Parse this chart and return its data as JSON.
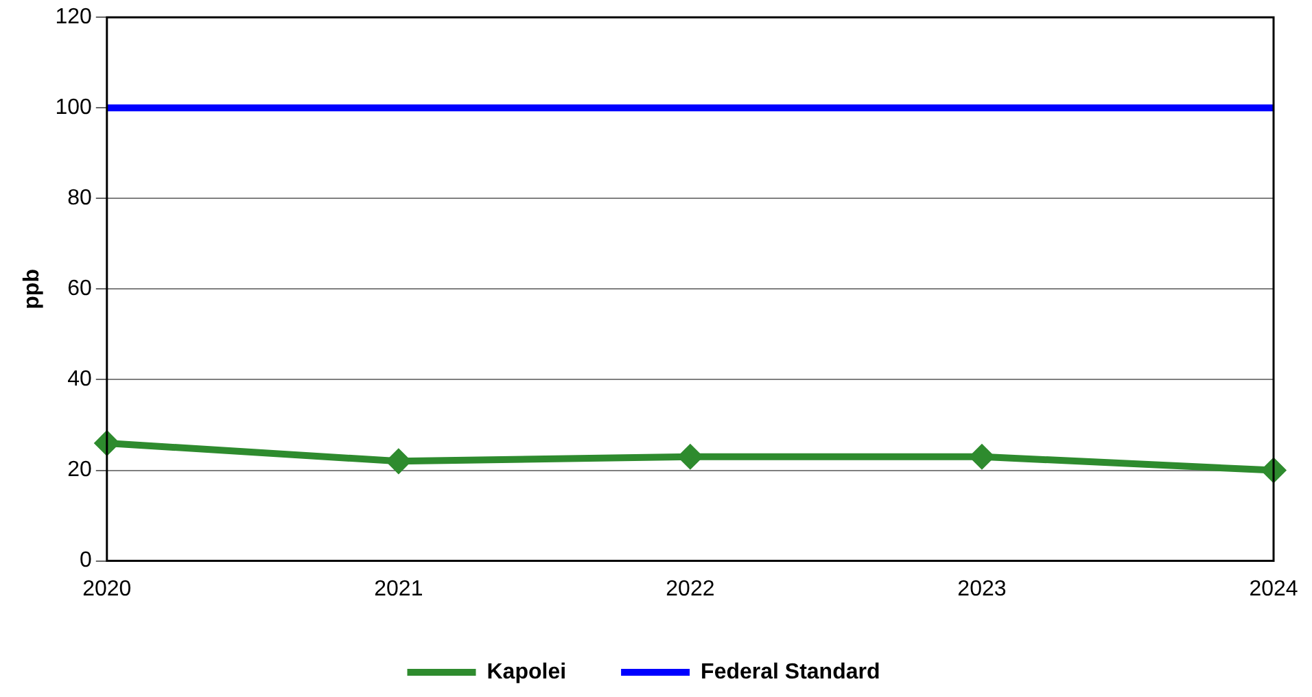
{
  "chart_data": {
    "type": "line",
    "ylabel": "ppb",
    "categories": [
      "2020",
      "2021",
      "2022",
      "2023",
      "2024"
    ],
    "series": [
      {
        "name": "Kapolei",
        "color": "#2e8b2e",
        "marker": "diamond",
        "values": [
          26,
          22,
          23,
          23,
          20
        ]
      },
      {
        "name": "Federal Standard",
        "color": "#0000ff",
        "marker": "none",
        "values": [
          100,
          100,
          100,
          100,
          100
        ]
      }
    ],
    "ylim": [
      0,
      120
    ],
    "yticks": [
      0,
      20,
      40,
      60,
      80,
      100,
      120
    ],
    "grid": "y",
    "legend": "bottom"
  }
}
